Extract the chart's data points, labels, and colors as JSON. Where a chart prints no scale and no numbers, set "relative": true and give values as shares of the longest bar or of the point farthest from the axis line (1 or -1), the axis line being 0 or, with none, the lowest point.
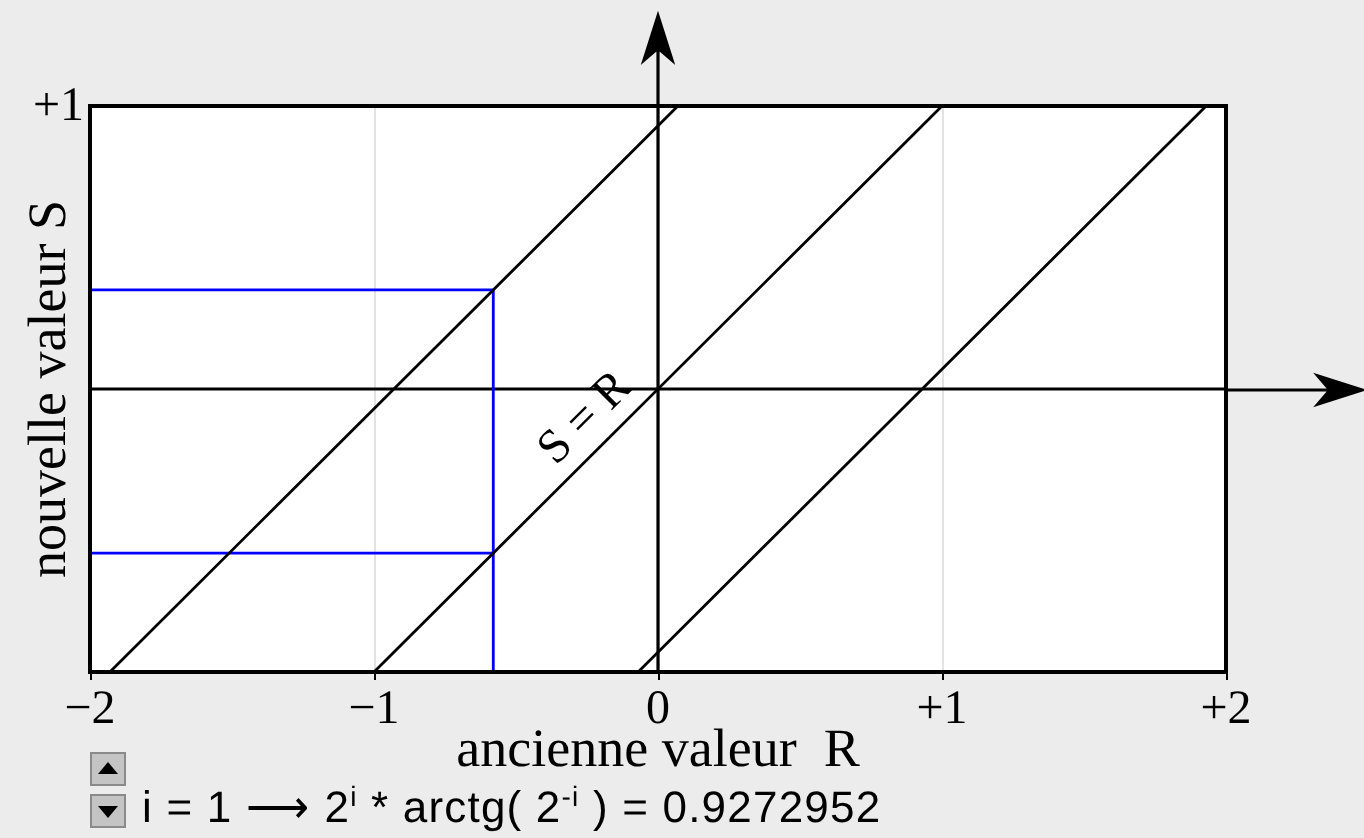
{
  "chart_data": {
    "type": "line",
    "xlabel": "ancienne valeur  R",
    "ylabel": "nouvelle valeur S",
    "xlim": [
      -2,
      2
    ],
    "xticks": [
      {
        "value": -2,
        "label": "−2"
      },
      {
        "value": -1,
        "label": "−1"
      },
      0,
      {
        "value": 1,
        "label": "+1"
      },
      {
        "value": 2,
        "label": "+2"
      }
    ],
    "relative": true,
    "series": [
      {
        "name": "S = R",
        "color": "#000000",
        "x": [
          -1,
          1
        ],
        "values": [
          -1,
          1
        ]
      },
      {
        "color": "#000000",
        "x": [
          -1.93,
          0.07
        ],
        "values": [
          -1,
          1
        ]
      },
      {
        "color": "#000000",
        "x": [
          -0.07,
          1.93
        ],
        "values": [
          -1,
          1
        ]
      },
      {
        "color": "#0000ff",
        "x": [
          -2,
          -0.58,
          -0.58
        ],
        "values": [
          0.35,
          0.35,
          -1
        ]
      },
      {
        "color": "#0000ff",
        "x": [
          -2,
          -0.58
        ],
        "values": [
          -0.58,
          -0.58
        ]
      }
    ],
    "ref_lines": [
      {
        "axis": "x",
        "value": 0,
        "color": "#000000"
      }
    ],
    "grid": "x",
    "legend": false,
    "annotations": [
      "+1",
      "i = 1 ⟶ 2$^{i}$ * arctg( 2$^{-i}$ ) = 0.9272952"
    ]
  }
}
